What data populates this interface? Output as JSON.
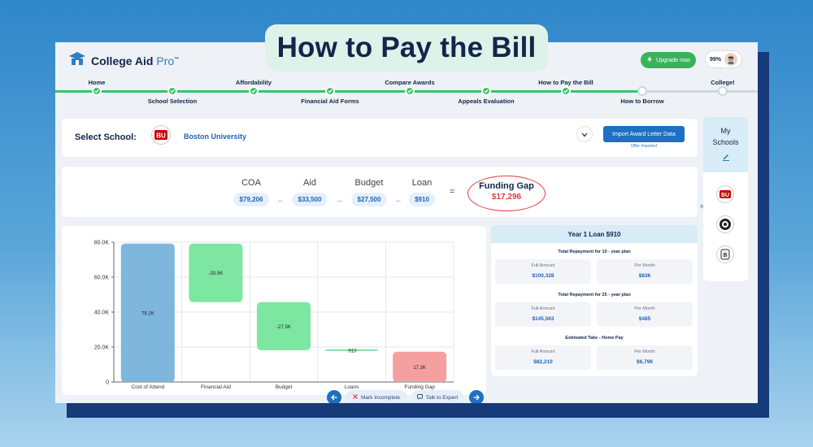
{
  "banner": {
    "title": "How to Pay the Bill"
  },
  "header": {
    "logo": {
      "brand": "College Aid",
      "suffix": "Pro",
      "tm": "™"
    },
    "upgrade_label": "Upgrade now",
    "profile_completion": "99%"
  },
  "progress": {
    "steps": [
      {
        "label": "Home",
        "done": true
      },
      {
        "label": "School Selection",
        "done": true
      },
      {
        "label": "Affordability",
        "done": true
      },
      {
        "label": "Financial Aid Forms",
        "done": true
      },
      {
        "label": "Compare Awards",
        "done": true
      },
      {
        "label": "Appeals Evaluation",
        "done": true
      },
      {
        "label": "How to Pay the Bill",
        "done": true
      },
      {
        "label": "How to Borrow",
        "done": false
      },
      {
        "label": "College!",
        "done": false
      }
    ]
  },
  "school_select": {
    "label": "Select School:",
    "school_name": "Boston University",
    "school_logo_text": "BU",
    "import_button": "Import Award Letter Data",
    "import_status": "Offer Imported"
  },
  "equation": {
    "coa": {
      "label": "COA",
      "value": "$79,206"
    },
    "aid": {
      "label": "Aid",
      "value": "$33,500"
    },
    "budget": {
      "label": "Budget",
      "value": "$27,500"
    },
    "loan": {
      "label": "Loan",
      "value": "$910"
    },
    "minus": "–",
    "equals": "=",
    "funding_gap": {
      "label": "Funding Gap",
      "value": "$17,296"
    }
  },
  "chart_data": {
    "type": "bar",
    "subtype": "waterfall",
    "categories": [
      "Cost of Attend",
      "Financial Aid",
      "Budget",
      "Loans",
      "Funding Gap"
    ],
    "bars": [
      {
        "start": 0,
        "end": 79.2,
        "label": "79.2K",
        "color": "#7fb6dc"
      },
      {
        "start": 79.2,
        "end": 45.7,
        "label": "-33.5K",
        "color": "#7de6a0"
      },
      {
        "start": 45.7,
        "end": 18.2,
        "label": "-27.5K",
        "color": "#7de6a0"
      },
      {
        "start": 18.2,
        "end": 17.3,
        "label": "-910",
        "color": "#7de6a0"
      },
      {
        "start": 0,
        "end": 17.3,
        "label": "17.3K",
        "color": "#f5a0a0"
      }
    ],
    "yticks": [
      "0",
      "20.0K",
      "40.0K",
      "60.0K",
      "80.0K"
    ],
    "ytick_values": [
      0,
      20,
      40,
      60,
      80
    ],
    "ylim": [
      0,
      80
    ],
    "grid": true
  },
  "loan_panel": {
    "title": "Year 1 Loan $910",
    "sections": [
      {
        "title": "Total Repayment for 10 - year plan",
        "full_label": "Full Amount",
        "full_value": "$100,328",
        "month_label": "Per Month",
        "month_value": "$836"
      },
      {
        "title": "Total Repayment for 25 - year plan",
        "full_label": "Full Amount",
        "full_value": "$145,563",
        "month_label": "Per Month",
        "month_value": "$485"
      },
      {
        "title": "Estimated Take - Home Pay",
        "full_label": "Full Amount",
        "full_value": "$82,210",
        "month_label": "Per Month",
        "month_value": "$6,796"
      }
    ]
  },
  "my_schools": {
    "line1": "My",
    "line2": "Schools",
    "collapse": "«",
    "schools": [
      "BU",
      "",
      "B"
    ]
  },
  "bottom_nav": {
    "mark_incomplete": "Mark Incomplete",
    "talk_to_expert": "Talk to Expert"
  },
  "colors": {
    "accent": "#1d70c2",
    "success": "#38c36c",
    "danger": "#e23b3b",
    "navy": "#12254a"
  }
}
